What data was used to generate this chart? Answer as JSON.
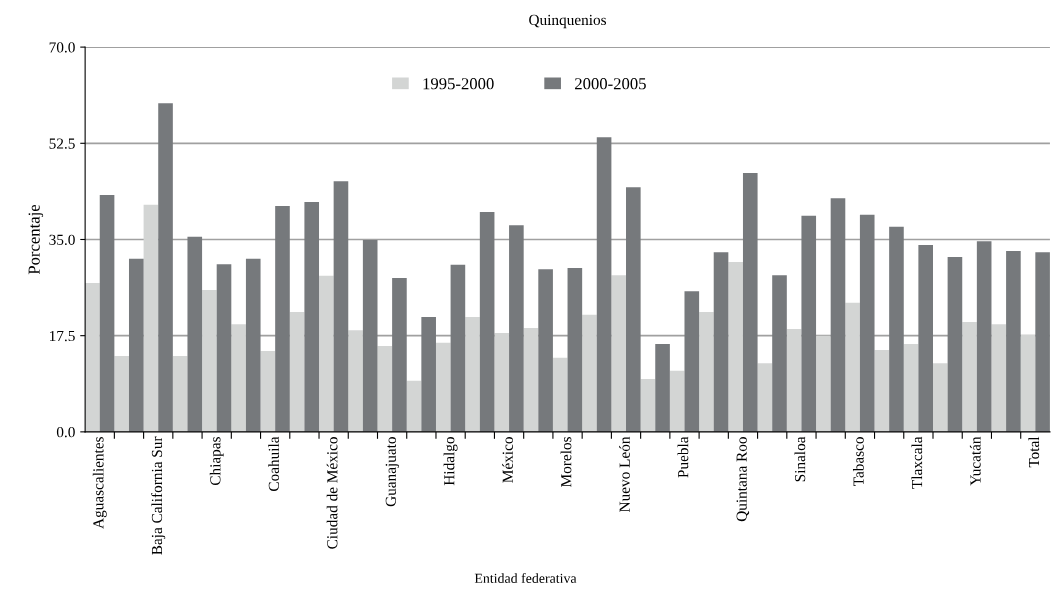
{
  "chart_data": {
    "type": "bar",
    "title": "Quinquenios",
    "xlabel": "Entidad federativa",
    "ylabel": "Porcentaje",
    "categories": [
      "Aguascalientes",
      null,
      "Baja California Sur",
      null,
      "Chiapas",
      null,
      "Coahuila",
      null,
      "Ciudad de México",
      null,
      "Guanajuato",
      null,
      "Hidalgo",
      null,
      "México",
      null,
      "Morelos",
      null,
      "Nuevo León",
      null,
      "Puebla",
      null,
      "Quintana Roo",
      null,
      "Sinaloa",
      null,
      "Tabasco",
      null,
      "Tlaxcala",
      null,
      "Yucatán",
      null,
      "Total"
    ],
    "series": [
      {
        "name": "1995-2000",
        "color": "#d3d5d4",
        "values": [
          27.1,
          13.8,
          41.3,
          13.8,
          25.8,
          19.6,
          14.7,
          21.8,
          28.4,
          18.5,
          15.6,
          9.3,
          16.2,
          20.9,
          18.0,
          18.9,
          13.5,
          21.3,
          28.5,
          9.6,
          11.1,
          21.8,
          30.9,
          12.5,
          18.7,
          17.5,
          23.5,
          14.9,
          16.0,
          12.5,
          20.0,
          19.6,
          17.6
        ]
      },
      {
        "name": "2000-2005",
        "color": "#76797c",
        "values": [
          43.1,
          31.5,
          59.8,
          35.5,
          30.5,
          31.5,
          41.1,
          41.8,
          45.6,
          34.9,
          28.0,
          20.9,
          30.4,
          40.0,
          37.6,
          29.6,
          29.8,
          53.6,
          44.5,
          16.0,
          25.6,
          32.7,
          47.1,
          28.5,
          39.3,
          42.5,
          39.5,
          37.3,
          34.0,
          31.8,
          34.7,
          32.9,
          32.7
        ]
      }
    ],
    "ylim": [
      0,
      70
    ],
    "yticks": [
      {
        "value": 0,
        "label": "0.0"
      },
      {
        "value": 17.5,
        "label": "17.5"
      },
      {
        "value": 35,
        "label": "35.0"
      },
      {
        "value": 52.5,
        "label": "52.5"
      },
      {
        "value": 70,
        "label": "70.0"
      }
    ],
    "grid": "y",
    "legend": "top"
  }
}
